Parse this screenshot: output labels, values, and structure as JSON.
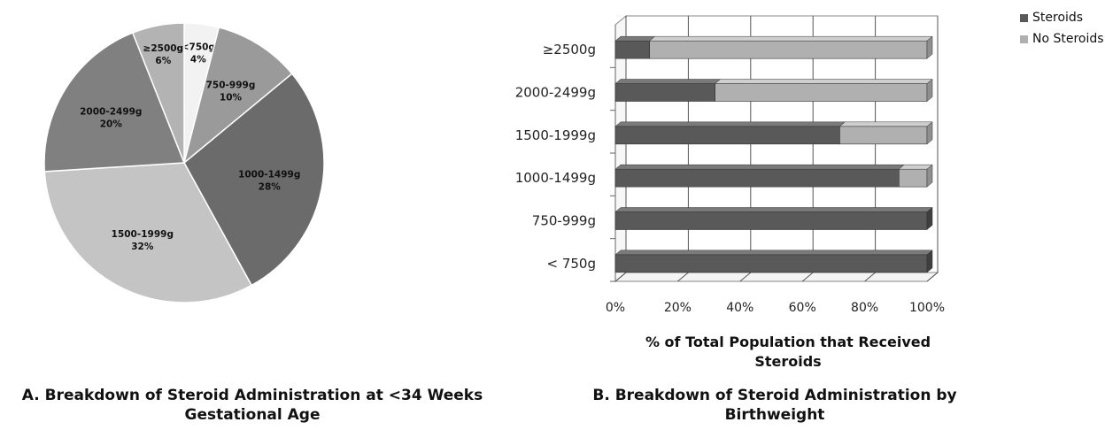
{
  "chart_data": [
    {
      "type": "pie",
      "title": "A. Breakdown of Steroid Administration at <34 Weeks Gestational Age",
      "slices": [
        {
          "label": "<750g",
          "value": 4,
          "display": "4%",
          "color": "#f2f2f2"
        },
        {
          "label": "750-999g",
          "value": 10,
          "display": "10%",
          "color": "#9a9a9a"
        },
        {
          "label": "1000-1499g",
          "value": 28,
          "display": "28%",
          "color": "#6b6b6b"
        },
        {
          "label": "1500-1999g",
          "value": 32,
          "display": "32%",
          "color": "#c4c4c4"
        },
        {
          "label": "2000-2499g",
          "value": 20,
          "display": "20%",
          "color": "#808080"
        },
        {
          "label": "≥2500g",
          "value": 6,
          "display": "6%",
          "color": "#b3b3b3"
        }
      ]
    },
    {
      "type": "bar",
      "orientation": "horizontal",
      "stacked": true,
      "title": "B. Breakdown of Steroid Administration by Birthweight",
      "xlabel": "% of Total Population that Received Steroids",
      "xlim": [
        0,
        100
      ],
      "xticks": [
        "0%",
        "20%",
        "40%",
        "60%",
        "80%",
        "100%"
      ],
      "categories": [
        "≥2500g",
        "2000-2499g",
        "1500-1999g",
        "1000-1499g",
        "750-999g",
        "< 750g"
      ],
      "series": [
        {
          "name": "Steroids",
          "color": "#595959",
          "values": [
            11,
            32,
            72,
            91,
            100,
            100
          ]
        },
        {
          "name": "No Steroids",
          "color": "#b0b0b0",
          "values": [
            89,
            68,
            28,
            9,
            0,
            0
          ]
        }
      ],
      "legend_position": "top-right",
      "grid": true
    }
  ]
}
